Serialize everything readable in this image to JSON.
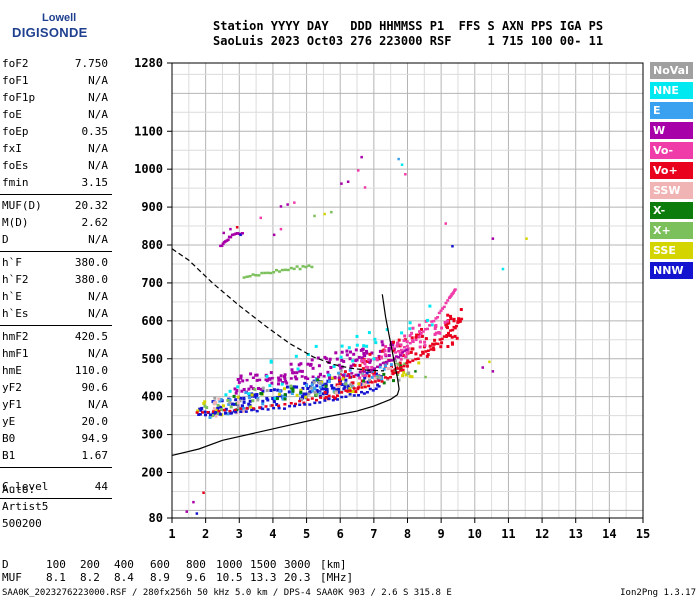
{
  "logo": {
    "line1": "Lowell",
    "line2": "DIGISONDE"
  },
  "header": {
    "line1": "Station YYYY DAY   DDD HHMMSS P1  FFS S AXN PPS IGA PS",
    "line2": "SaoLuis 2023 Oct03 276 223000 RSF     1 715 100 00- 11"
  },
  "params": {
    "group1": [
      {
        "name": "foF2",
        "value": "7.750"
      },
      {
        "name": "foF1",
        "value": "N/A"
      },
      {
        "name": "foF1p",
        "value": "N/A"
      },
      {
        "name": "foE",
        "value": "N/A"
      },
      {
        "name": "foEp",
        "value": "0.35"
      },
      {
        "name": "fxI",
        "value": "N/A"
      },
      {
        "name": "foEs",
        "value": "N/A"
      },
      {
        "name": "fmin",
        "value": "3.15"
      }
    ],
    "group2": [
      {
        "name": "MUF(D)",
        "value": "20.32"
      },
      {
        "name": "M(D)",
        "value": "2.62"
      },
      {
        "name": "D",
        "value": "N/A"
      }
    ],
    "group3": [
      {
        "name": "h`F",
        "value": "380.0"
      },
      {
        "name": "h`F2",
        "value": "380.0"
      },
      {
        "name": "h`E",
        "value": "N/A"
      },
      {
        "name": "h`Es",
        "value": "N/A"
      }
    ],
    "group4": [
      {
        "name": "hmF2",
        "value": "420.5"
      },
      {
        "name": "hmF1",
        "value": "N/A"
      },
      {
        "name": "hmE",
        "value": "110.0"
      },
      {
        "name": "yF2",
        "value": "90.6"
      },
      {
        "name": "yF1",
        "value": "N/A"
      },
      {
        "name": "yE",
        "value": "20.0"
      },
      {
        "name": "B0",
        "value": "94.9"
      },
      {
        "name": "B1",
        "value": "1.67"
      }
    ],
    "clevel": {
      "name": "C-level",
      "value": "44"
    }
  },
  "auto": {
    "line1": "Auto:",
    "line2": "Artist5",
    "line3": "500200"
  },
  "legend": [
    {
      "label": "NoVal",
      "color": "#a0a0a0"
    },
    {
      "label": "NNE",
      "color": "#00e8f0"
    },
    {
      "label": "E",
      "color": "#3aa0f0"
    },
    {
      "label": "W",
      "color": "#a800a8"
    },
    {
      "label": "Vo-",
      "color": "#f03ca8"
    },
    {
      "label": "Vo+",
      "color": "#e8001c"
    },
    {
      "label": "SSW",
      "color": "#f0b4b4"
    },
    {
      "label": "X-",
      "color": "#0c7c0c"
    },
    {
      "label": "X+",
      "color": "#7cc05c"
    },
    {
      "label": "SSE",
      "color": "#d4d400"
    },
    {
      "label": "NNW",
      "color": "#1414d0"
    }
  ],
  "dmuf": {
    "d_label": "D",
    "d_values": [
      "100",
      "200",
      "400",
      "600",
      "800",
      "1000",
      "1500",
      "3000",
      "[km]"
    ],
    "muf_label": "MUF",
    "muf_values": [
      "8.1",
      "8.2",
      "8.4",
      "8.9",
      "9.6",
      "10.5",
      "13.3",
      "20.3",
      "[MHz]"
    ]
  },
  "footer": {
    "left": "SAA0K_2023276223000.RSF / 280fx256h 50 kHz 5.0 km / DPS-4 SAA0K 903 / 2.6 S 315.8 E",
    "right": "Ion2Png 1.3.17"
  },
  "chart_data": {
    "type": "scatter",
    "x_label_unit": "MHz",
    "xlim": [
      1,
      15
    ],
    "ylim": [
      80,
      1280
    ],
    "x_ticks": [
      "1",
      "2",
      "3",
      "4",
      "5",
      "6",
      "7",
      "8",
      "9",
      "10",
      "11",
      "12",
      "13",
      "14",
      "15"
    ],
    "y_ticks": [
      {
        "label": "80",
        "value": 80
      },
      {
        "label": "200",
        "value": 200
      },
      {
        "label": "300",
        "value": 300
      },
      {
        "label": "400",
        "value": 400
      },
      {
        "label": "500",
        "value": 500
      },
      {
        "label": "600",
        "value": 600
      },
      {
        "label": "700",
        "value": 700
      },
      {
        "label": "800",
        "value": 800
      },
      {
        "label": "900",
        "value": 900
      },
      {
        "label": "1000",
        "value": 1000
      },
      {
        "label": "1100",
        "value": 1100
      },
      {
        "label": "1280",
        "value": 1280
      }
    ],
    "grid": true,
    "profile_solid": [
      [
        1,
        245
      ],
      [
        1.8,
        262
      ],
      [
        2.5,
        285
      ],
      [
        3.5,
        305
      ],
      [
        4.5,
        325
      ],
      [
        5.5,
        345
      ],
      [
        6.5,
        362
      ],
      [
        7,
        375
      ],
      [
        7.5,
        393
      ],
      [
        7.7,
        405
      ],
      [
        7.75,
        420
      ],
      [
        7.7,
        450
      ],
      [
        7.5,
        540
      ],
      [
        7.35,
        610
      ],
      [
        7.25,
        670
      ]
    ],
    "profile_dashed": [
      [
        1,
        790
      ],
      [
        1.5,
        760
      ],
      [
        2.2,
        700
      ],
      [
        3,
        640
      ],
      [
        3.8,
        585
      ],
      [
        4.5,
        540
      ],
      [
        5.2,
        505
      ],
      [
        5.8,
        485
      ],
      [
        6.3,
        475
      ],
      [
        6.8,
        470
      ],
      [
        7.3,
        468
      ]
    ],
    "trace_clusters": [
      {
        "color": "#1414d0",
        "x": [
          1.7,
          7.2
        ],
        "y": [
          355,
          480
        ],
        "n": 140
      },
      {
        "color": "#a800a8",
        "x": [
          2.8,
          7.6
        ],
        "y": [
          420,
          560
        ],
        "n": 110
      },
      {
        "color": "#e8001c",
        "x": [
          5.5,
          9.6
        ],
        "y": [
          400,
          640
        ],
        "n": 110
      },
      {
        "color": "#f03ca8",
        "x": [
          6.5,
          9.2
        ],
        "y": [
          450,
          650
        ],
        "n": 60
      },
      {
        "color": "#3aa0f0",
        "x": [
          2.0,
          7.5
        ],
        "y": [
          360,
          500
        ],
        "n": 55
      },
      {
        "color": "#00e8f0",
        "x": [
          2.5,
          9.2
        ],
        "y": [
          380,
          680
        ],
        "n": 35
      },
      {
        "color": "#d4d400",
        "x": [
          1.7,
          8.5
        ],
        "y": [
          355,
          500
        ],
        "n": 30
      },
      {
        "color": "#0c7c0c",
        "x": [
          1.8,
          8.0
        ],
        "y": [
          360,
          500
        ],
        "n": 22
      },
      {
        "color": "#7cc05c",
        "x": [
          1.8,
          8.2
        ],
        "y": [
          360,
          510
        ],
        "n": 22
      },
      {
        "color": "#a0a0a0",
        "x": [
          1.7,
          8.5
        ],
        "y": [
          355,
          520
        ],
        "n": 30
      },
      {
        "color": "#f0b4b4",
        "x": [
          2.0,
          8.0
        ],
        "y": [
          360,
          500
        ],
        "n": 18
      }
    ],
    "trace_lines": [
      {
        "color": "#e8001c",
        "points": [
          [
            1.7,
            360
          ],
          [
            3,
            372
          ],
          [
            4.5,
            385
          ],
          [
            5.5,
            400
          ],
          [
            6.5,
            425
          ],
          [
            7.3,
            450
          ],
          [
            7.9,
            475
          ]
        ]
      },
      {
        "color": "#1414d0",
        "points": [
          [
            1.8,
            355
          ],
          [
            3,
            364
          ],
          [
            4.3,
            375
          ],
          [
            5.5,
            392
          ],
          [
            6.5,
            410
          ],
          [
            7.2,
            430
          ]
        ]
      },
      {
        "color": "#a800a8",
        "points": [
          [
            3,
            450
          ],
          [
            4.5,
            452
          ],
          [
            5.8,
            455
          ],
          [
            6.8,
            470
          ],
          [
            7.5,
            500
          ],
          [
            8,
            530
          ]
        ]
      },
      {
        "color": "#e8001c",
        "points": [
          [
            7.5,
            470
          ],
          [
            8.2,
            500
          ],
          [
            8.8,
            540
          ],
          [
            9.3,
            580
          ],
          [
            9.6,
            610
          ]
        ]
      },
      {
        "color": "#f03ca8",
        "points": [
          [
            7.6,
            520
          ],
          [
            8.3,
            560
          ],
          [
            8.8,
            610
          ],
          [
            9.2,
            660
          ],
          [
            9.4,
            690
          ]
        ]
      },
      {
        "color": "#a800a8",
        "points": [
          [
            2.4,
            800
          ],
          [
            2.7,
            825
          ],
          [
            3.1,
            840
          ]
        ]
      },
      {
        "color": "#7cc05c",
        "points": [
          [
            3.1,
            720
          ],
          [
            3.8,
            730
          ],
          [
            4.5,
            740
          ],
          [
            5.2,
            750
          ]
        ]
      }
    ],
    "scattered_points": [
      [
        2.5,
        835,
        "#a800a8"
      ],
      [
        2.7,
        845,
        "#a800a8"
      ],
      [
        2.9,
        850,
        "#e8001c"
      ],
      [
        3.0,
        830,
        "#1414d0"
      ],
      [
        4.2,
        905,
        "#a800a8"
      ],
      [
        4.4,
        910,
        "#a800a8"
      ],
      [
        4.6,
        915,
        "#f03ca8"
      ],
      [
        5.2,
        880,
        "#7cc05c"
      ],
      [
        5.5,
        885,
        "#d4d400"
      ],
      [
        5.7,
        890,
        "#7cc05c"
      ],
      [
        6.0,
        965,
        "#a800a8"
      ],
      [
        6.2,
        970,
        "#a800a8"
      ],
      [
        6.5,
        1000,
        "#f03ca8"
      ],
      [
        6.6,
        1035,
        "#a800a8"
      ],
      [
        6.7,
        955,
        "#f03ca8"
      ],
      [
        7.7,
        1030,
        "#3aa0f0"
      ],
      [
        7.8,
        1015,
        "#00e8f0"
      ],
      [
        7.9,
        990,
        "#f03ca8"
      ],
      [
        4.0,
        830,
        "#a800a8"
      ],
      [
        4.2,
        845,
        "#f03ca8"
      ],
      [
        3.6,
        875,
        "#f03ca8"
      ],
      [
        10.8,
        740,
        "#00e8f0"
      ],
      [
        10.5,
        820,
        "#a800a8"
      ],
      [
        11.5,
        820,
        "#d4d400"
      ],
      [
        9.3,
        800,
        "#1414d0"
      ],
      [
        9.1,
        860,
        "#f03ca8"
      ],
      [
        1.4,
        100,
        "#a800a8"
      ],
      [
        1.6,
        125,
        "#a800a8"
      ],
      [
        1.9,
        150,
        "#e8001c"
      ],
      [
        1.7,
        95,
        "#1414d0"
      ],
      [
        10.2,
        480,
        "#a800a8"
      ],
      [
        10.4,
        495,
        "#d4d400"
      ],
      [
        10.5,
        470,
        "#a800a8"
      ],
      [
        8.2,
        470,
        "#0c7c0c"
      ],
      [
        8.5,
        455,
        "#7cc05c"
      ]
    ]
  }
}
